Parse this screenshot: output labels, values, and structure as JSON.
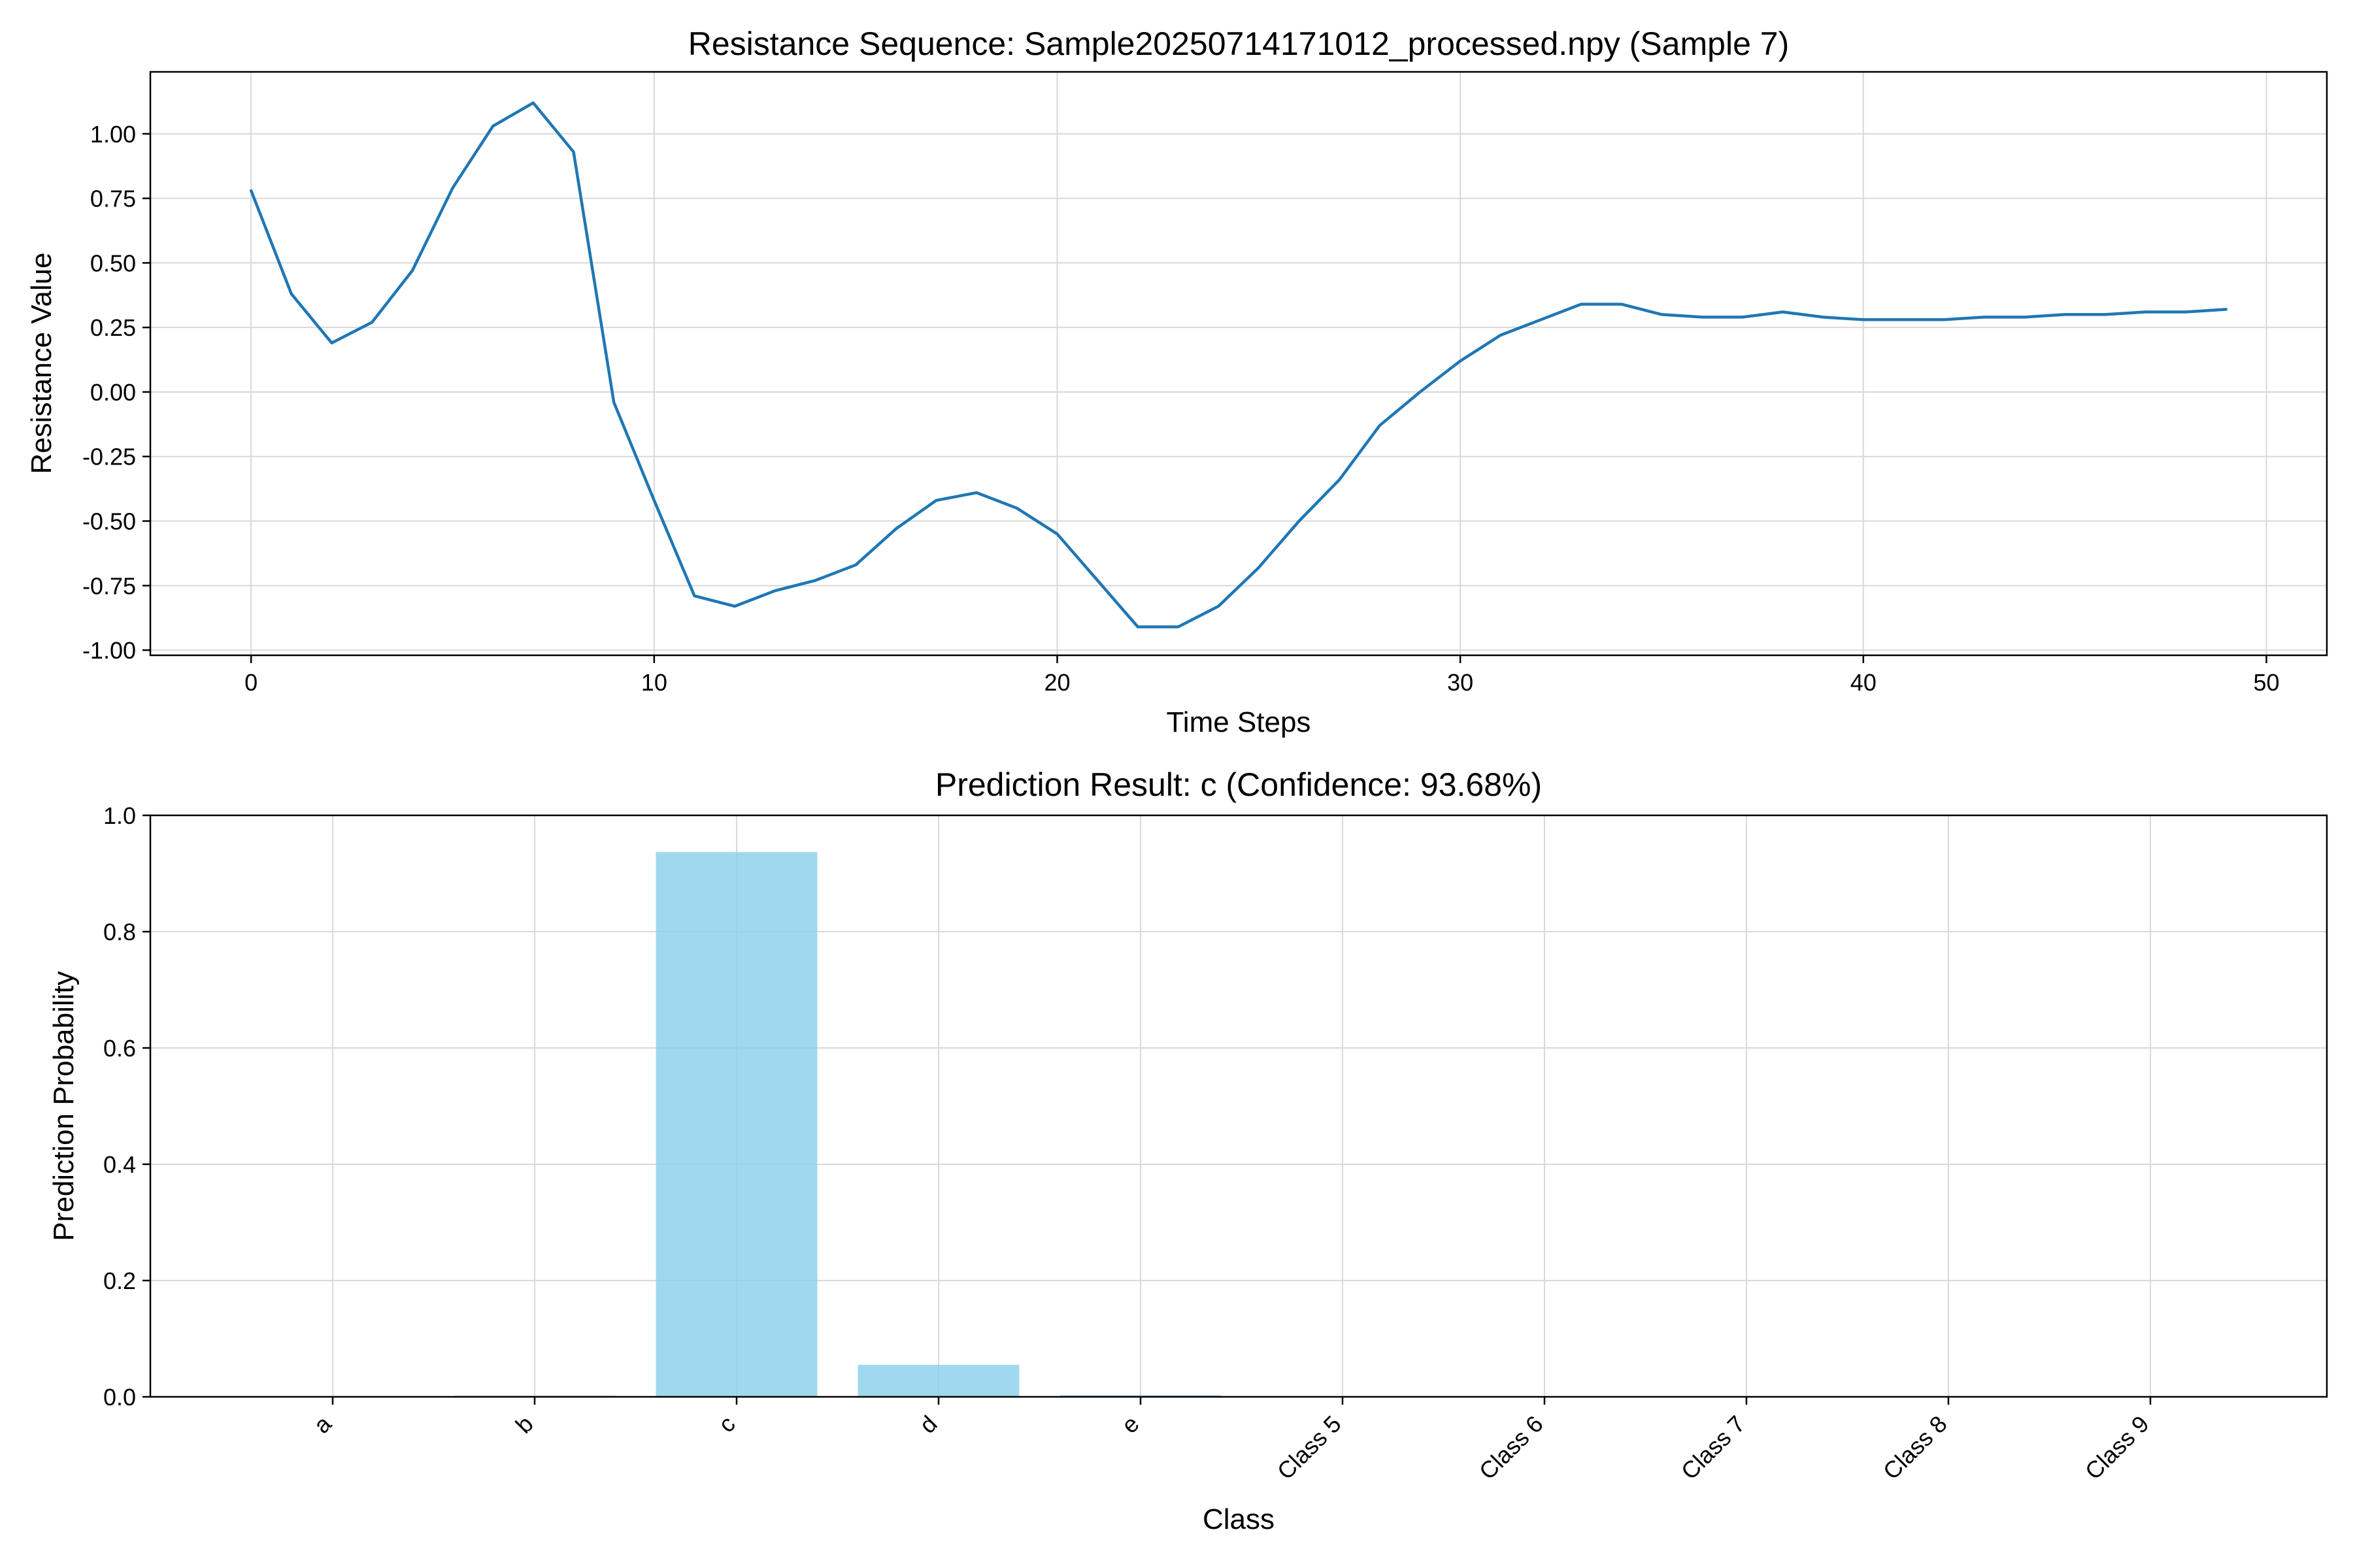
{
  "chart_data": [
    {
      "type": "line",
      "title": "Resistance Sequence: Sample20250714171012_processed.npy (Sample 7)",
      "xlabel": "Time Steps",
      "ylabel": "Resistance Value",
      "xlim": [
        -2.5,
        51.5
      ],
      "ylim": [
        -1.02,
        1.24
      ],
      "xticks": [
        0,
        10,
        20,
        30,
        40,
        50
      ],
      "xtick_labels": [
        "0",
        "10",
        "20",
        "30",
        "40",
        "50"
      ],
      "yticks": [
        -1.0,
        -0.75,
        -0.5,
        -0.25,
        0.0,
        0.25,
        0.5,
        0.75,
        1.0
      ],
      "ytick_labels": [
        "-1.00",
        "-0.75",
        "-0.50",
        "-0.25",
        "0.00",
        "0.25",
        "0.50",
        "0.75",
        "1.00"
      ],
      "grid": true,
      "color": "#1f77b4",
      "series": [
        {
          "x": [
            0,
            1,
            2,
            3,
            4,
            5,
            6,
            7,
            8,
            9,
            10,
            11,
            12,
            13,
            14,
            15,
            16,
            17,
            18,
            19,
            20,
            21,
            22,
            23,
            24,
            25,
            26,
            27,
            28,
            29,
            30,
            31,
            32,
            33,
            34,
            35,
            36,
            37,
            38,
            39,
            40,
            41,
            42,
            43,
            44,
            45,
            46,
            47,
            48,
            49
          ],
          "values": [
            0.78,
            0.38,
            0.19,
            0.27,
            0.47,
            0.79,
            1.03,
            1.12,
            0.93,
            -0.04,
            -0.42,
            -0.79,
            -0.83,
            -0.77,
            -0.73,
            -0.67,
            -0.53,
            -0.42,
            -0.39,
            -0.45,
            -0.55,
            -0.73,
            -0.91,
            -0.91,
            -0.83,
            -0.68,
            -0.5,
            -0.34,
            -0.13,
            -0.0,
            0.12,
            0.22,
            0.28,
            0.34,
            0.34,
            0.3,
            0.29,
            0.29,
            0.31,
            0.29,
            0.28,
            0.28,
            0.28,
            0.29,
            0.29,
            0.3,
            0.3,
            0.31,
            0.31,
            0.32
          ]
        }
      ]
    },
    {
      "type": "bar",
      "title": "Prediction Result: c (Confidence: 93.68%)",
      "xlabel": "Class",
      "ylabel": "Prediction Probability",
      "categories": [
        "a",
        "b",
        "c",
        "d",
        "e",
        "Class 5",
        "Class 6",
        "Class 7",
        "Class 8",
        "Class 9"
      ],
      "values": [
        0.0,
        0.002,
        0.9368,
        0.055,
        0.003,
        0.0,
        0.0,
        0.0,
        0.0,
        0.0
      ],
      "ylim": [
        0,
        1.0
      ],
      "yticks": [
        0.0,
        0.2,
        0.4,
        0.6,
        0.8,
        1.0
      ],
      "ytick_labels": [
        "0.0",
        "0.2",
        "0.4",
        "0.6",
        "0.8",
        "1.0"
      ],
      "grid": true,
      "color": "#87ceeb"
    }
  ]
}
